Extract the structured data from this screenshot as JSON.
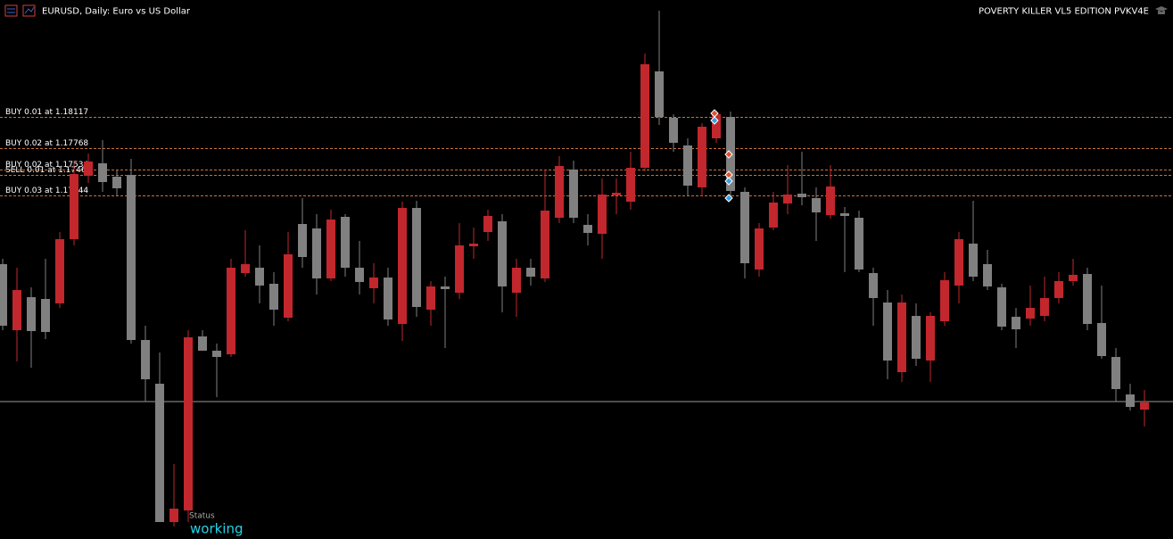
{
  "chart_data": {
    "type": "candlestick",
    "title": "EURUSD, Daily:  Euro vs US Dollar",
    "expert": "POVERTY KILLER VL5 EDITION PVKV4E",
    "ylim": [
      1.1339,
      1.1943
    ],
    "up_color": "#c1272d",
    "down_color": "#808080",
    "open": [
      1.1647,
      1.1573,
      1.161,
      1.1608,
      1.1603,
      1.1675,
      1.1746,
      1.176,
      1.1745,
      1.1747,
      1.1562,
      1.1513,
      1.1358,
      1.1371,
      1.1566,
      1.155,
      1.1546,
      1.1637,
      1.1643,
      1.1625,
      1.1587,
      1.1692,
      1.1687,
      1.1631,
      1.17,
      1.1643,
      1.162,
      1.1632,
      1.158,
      1.171,
      1.1596,
      1.1622,
      1.1615,
      1.1667,
      1.1683,
      1.1695,
      1.1615,
      1.1643,
      1.1631,
      1.1699,
      1.1753,
      1.1691,
      1.1681,
      1.1724,
      1.1717,
      1.1755,
      1.1863,
      1.1811,
      1.178,
      1.1733,
      1.1788,
      1.1812,
      1.1728,
      1.1641,
      1.1688,
      1.1715,
      1.1726,
      1.1721,
      1.1702,
      1.1704,
      1.1699,
      1.1637,
      1.1604,
      1.1526,
      1.1589,
      1.1539,
      1.1583,
      1.1623,
      1.167,
      1.1647,
      1.1621,
      1.1588,
      1.1586,
      1.1589,
      1.1609,
      1.1628,
      1.1636,
      1.1581,
      1.1543,
      1.1501,
      1.1484
    ],
    "high": [
      1.1653,
      1.1643,
      1.1621,
      1.1653,
      1.1683,
      1.1763,
      1.1771,
      1.1786,
      1.1753,
      1.1765,
      1.1578,
      1.1548,
      1.1423,
      1.1573,
      1.1573,
      1.1558,
      1.1653,
      1.1685,
      1.1668,
      1.1638,
      1.1683,
      1.1721,
      1.1703,
      1.1708,
      1.1703,
      1.1673,
      1.1648,
      1.1643,
      1.1717,
      1.1718,
      1.1628,
      1.1633,
      1.1693,
      1.1688,
      1.1708,
      1.1703,
      1.1653,
      1.1653,
      1.1753,
      1.1768,
      1.1763,
      1.1703,
      1.1743,
      1.1743,
      1.1773,
      1.1883,
      1.1931,
      1.1815,
      1.1788,
      1.1805,
      1.1818,
      1.1818,
      1.1733,
      1.1693,
      1.1728,
      1.1758,
      1.1773,
      1.1733,
      1.1758,
      1.1711,
      1.1707,
      1.1643,
      1.1618,
      1.1613,
      1.1603,
      1.1593,
      1.1638,
      1.1683,
      1.1718,
      1.1663,
      1.1625,
      1.1598,
      1.1623,
      1.1633,
      1.1638,
      1.1653,
      1.1643,
      1.1623,
      1.1553,
      1.1513,
      1.1506
    ],
    "low": [
      1.1573,
      1.1538,
      1.1531,
      1.1563,
      1.1598,
      1.1668,
      1.1738,
      1.1728,
      1.1723,
      1.1558,
      1.1493,
      1.1358,
      1.1353,
      1.1358,
      1.155,
      1.1498,
      1.1543,
      1.1633,
      1.1603,
      1.1578,
      1.1583,
      1.1643,
      1.1613,
      1.1628,
      1.1633,
      1.1613,
      1.1603,
      1.1578,
      1.1561,
      1.1588,
      1.1578,
      1.1553,
      1.1608,
      1.1653,
      1.1673,
      1.1593,
      1.1588,
      1.1623,
      1.1627,
      1.1693,
      1.1693,
      1.1668,
      1.1653,
      1.1703,
      1.1708,
      1.1751,
      1.1803,
      1.1773,
      1.1723,
      1.1723,
      1.1783,
      1.1718,
      1.1631,
      1.1633,
      1.1685,
      1.1703,
      1.1713,
      1.1673,
      1.1698,
      1.1638,
      1.1638,
      1.1578,
      1.1518,
      1.1515,
      1.1533,
      1.1515,
      1.1578,
      1.1603,
      1.1628,
      1.1618,
      1.1573,
      1.1553,
      1.1578,
      1.1583,
      1.1603,
      1.1623,
      1.1573,
      1.1541,
      1.1493,
      1.1483,
      1.1465
    ],
    "close": [
      1.1578,
      1.1618,
      1.1572,
      1.1571,
      1.1675,
      1.1748,
      1.1762,
      1.1739,
      1.1732,
      1.1562,
      1.1518,
      1.1358,
      1.1373,
      1.1565,
      1.155,
      1.1543,
      1.1643,
      1.1647,
      1.1623,
      1.1596,
      1.1658,
      1.1655,
      1.1631,
      1.1697,
      1.1643,
      1.1627,
      1.1632,
      1.1585,
      1.171,
      1.1599,
      1.1622,
      1.1619,
      1.1668,
      1.167,
      1.1701,
      1.1622,
      1.1643,
      1.1633,
      1.1707,
      1.1757,
      1.1699,
      1.1682,
      1.1725,
      1.1727,
      1.1755,
      1.1871,
      1.1812,
      1.1783,
      1.1735,
      1.1801,
      1.1815,
      1.1729,
      1.1648,
      1.1687,
      1.1716,
      1.1725,
      1.1722,
      1.1705,
      1.1734,
      1.1701,
      1.1641,
      1.1609,
      1.1539,
      1.1604,
      1.1541,
      1.1589,
      1.1629,
      1.1675,
      1.1633,
      1.1622,
      1.1577,
      1.1574,
      1.1598,
      1.1609,
      1.1628,
      1.1635,
      1.158,
      1.1544,
      1.1507,
      1.1487,
      1.1492
    ],
    "orders": [
      {
        "label": "BUY 0.01 at 1.18117",
        "price": 1.18117
      },
      {
        "label": "BUY 0.02 at 1.17768",
        "price": 1.17768
      },
      {
        "label": "BUY 0.02 at 1.17534",
        "price": 1.17534
      },
      {
        "label": "SELL 0.01 at 1.17466",
        "price": 1.17466
      },
      {
        "label": "BUY 0.03 at 1.17244",
        "price": 1.17244
      }
    ],
    "order_color": "#c8733a",
    "price_line": 1.1493,
    "price_line_color": "#9a9a9a",
    "status": {
      "label": "Status",
      "value": "working",
      "color": "#22d3e6"
    }
  }
}
